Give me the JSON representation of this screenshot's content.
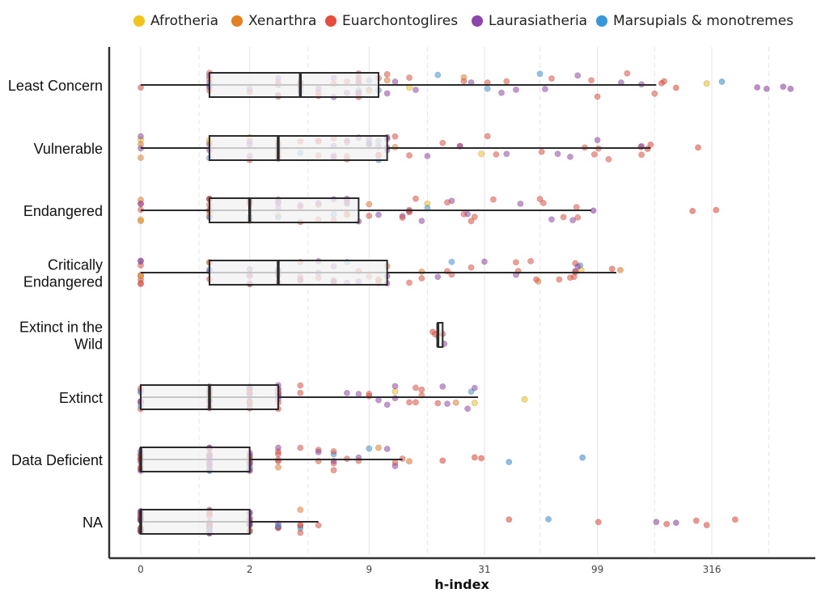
{
  "chart_data": {
    "type": "boxplot",
    "title": "",
    "xlabel": "h-index",
    "ylabel": "",
    "x_scale": "log1p",
    "xlim": [
      0,
      1000
    ],
    "x_ticks": [
      "0",
      "2",
      "9",
      "31",
      "99",
      "316"
    ],
    "grid": "vertical",
    "legend_position": "top",
    "legend": [
      {
        "name": "Afrotheria",
        "color": "#f0c419"
      },
      {
        "name": "Xenarthra",
        "color": "#e67e22"
      },
      {
        "name": "Euarchontoglires",
        "color": "#e74c3c"
      },
      {
        "name": "Laurasiatheria",
        "color": "#8e44ad"
      },
      {
        "name": "Marsupials & monotremes",
        "color": "#3498db"
      }
    ],
    "categories": [
      {
        "label": "Least Concern",
        "lines": [
          "Least Concern"
        ],
        "box": {
          "whisker_low": 0,
          "q1": 1,
          "median": 4,
          "q3": 10,
          "whisker_high": 180
        },
        "outliers": [
          190,
          195,
          220,
          300,
          350,
          500,
          550,
          650,
          700
        ]
      },
      {
        "label": "Vulnerable",
        "lines": [
          "Vulnerable"
        ],
        "box": {
          "whisker_low": 0,
          "q1": 1,
          "median": 3,
          "q3": 11,
          "whisker_high": 170
        },
        "outliers": [
          155,
          165,
          170,
          275
        ]
      },
      {
        "label": "Endangered",
        "lines": [
          "Endangered"
        ],
        "box": {
          "whisker_low": 0,
          "q1": 1,
          "median": 2,
          "q3": 8,
          "whisker_high": 93
        },
        "outliers": [
          95,
          260,
          330
        ]
      },
      {
        "label": "Critically Endangered",
        "lines": [
          "Critically",
          "Endangered"
        ],
        "box": {
          "whisker_low": 0,
          "q1": 1,
          "median": 3,
          "q3": 11,
          "whisker_high": 120
        },
        "outliers": [
          115,
          125
        ]
      },
      {
        "label": "Extinct in the Wild",
        "lines": [
          "Extinct in the",
          "Wild"
        ],
        "box": {
          "whisker_low": 19,
          "q1": 19,
          "median": 19,
          "q3": 20,
          "whisker_high": 20
        },
        "outliers": [
          18,
          20
        ]
      },
      {
        "label": "Extinct",
        "lines": [
          "Extinct"
        ],
        "box": {
          "whisker_low": 0,
          "q1": 0,
          "median": 1,
          "q3": 3,
          "whisker_high": 29
        },
        "outliers": [
          47
        ]
      },
      {
        "label": "Data Deficient",
        "lines": [
          "Data Deficient"
        ],
        "box": {
          "whisker_low": 0,
          "q1": 0,
          "median": 0,
          "q3": 2,
          "whisker_high": 13
        },
        "outliers": [
          14,
          20,
          28,
          30,
          40,
          85
        ]
      },
      {
        "label": "NA",
        "lines": [
          "NA"
        ],
        "box": {
          "whisker_low": 0,
          "q1": 0,
          "median": 0,
          "q3": 2,
          "whisker_high": 5
        },
        "outliers": [
          40,
          60,
          100,
          180,
          200,
          220,
          270,
          300,
          400
        ]
      }
    ]
  }
}
